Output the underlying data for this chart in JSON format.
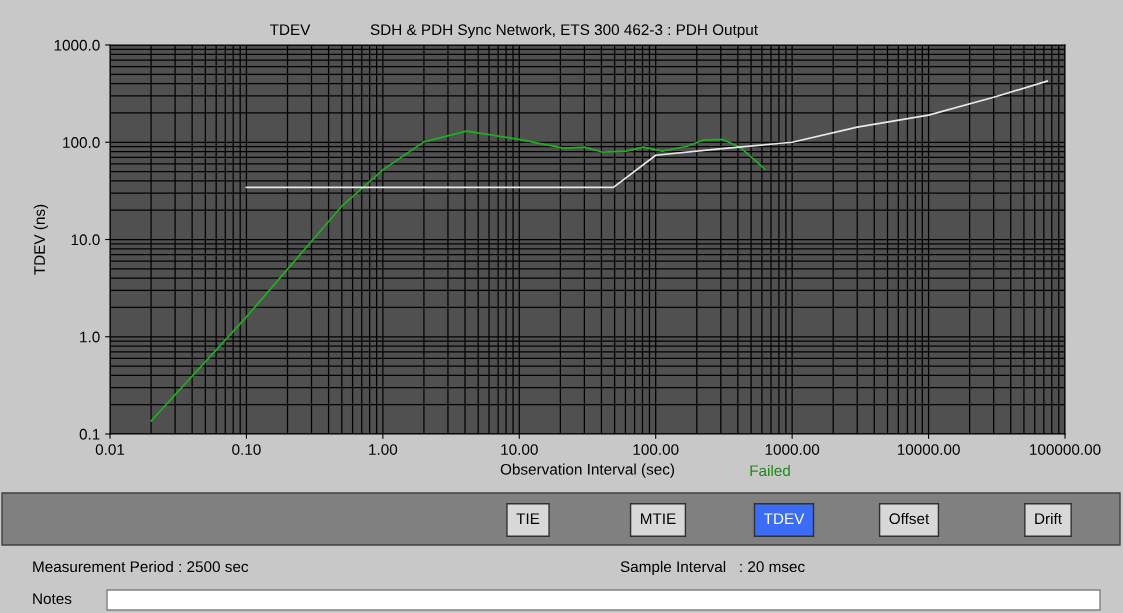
{
  "chart_data": {
    "type": "line",
    "title": "TDEV",
    "subtitle": "SDH & PDH Sync Network, ETS 300 462-3 : PDH Output",
    "xlabel": "Observation Interval (sec)",
    "ylabel": "TDEV (ns)",
    "log": "xy",
    "grid": true,
    "marker": "none",
    "line_style": "solid",
    "xlim": [
      0.01,
      100000
    ],
    "ylim": [
      0.1,
      1000
    ],
    "xticks": [
      {
        "value": 0.01,
        "label": "0.01"
      },
      {
        "value": 0.1,
        "label": "0.10"
      },
      {
        "value": 1,
        "label": "1.00"
      },
      {
        "value": 10,
        "label": "10.00"
      },
      {
        "value": 100,
        "label": "100.00"
      },
      {
        "value": 1000,
        "label": "1000.00"
      },
      {
        "value": 10000,
        "label": "10000.00"
      },
      {
        "value": 100000,
        "label": "100000.00"
      }
    ],
    "yticks": [
      {
        "value": 0.1,
        "label": "0.1"
      },
      {
        "value": 1,
        "label": "1.0"
      },
      {
        "value": 10,
        "label": "10.0"
      },
      {
        "value": 100,
        "label": "100.0"
      },
      {
        "value": 1000,
        "label": "1000.0"
      }
    ],
    "series": [
      {
        "color": "#1fb01f",
        "x": [
          0.02,
          0.1,
          0.5,
          1,
          2,
          4.1,
          10,
          21,
          30,
          41,
          61,
          81,
          112,
          170,
          222,
          310,
          415,
          630
        ],
        "values": [
          0.136,
          1.6,
          22,
          52,
          101,
          130,
          107,
          87,
          89,
          79,
          81,
          89,
          81,
          91,
          105,
          107,
          89,
          53
        ]
      },
      {
        "color": "#e8e8e8",
        "x": [
          0.1,
          49,
          100,
          280,
          1000,
          3000,
          10000,
          30000,
          74000
        ],
        "values": [
          34.4,
          34.4,
          73.5,
          85,
          100,
          143,
          190,
          290,
          425
        ]
      }
    ],
    "annotations": [
      "Failed",
      "TIE",
      "MTIE",
      "TDEV",
      "Offset",
      "Drift",
      "Measurement Period : 2500 sec",
      "Sample Interval   : 20 msec",
      "Notes"
    ]
  }
}
